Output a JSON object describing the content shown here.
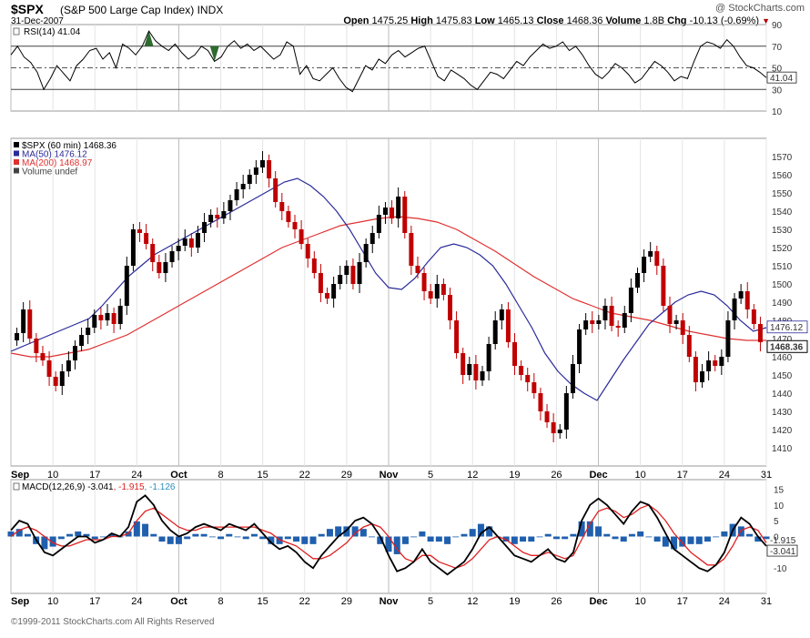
{
  "header": {
    "symbol": "$SPX",
    "symbol_name": "(S&P 500 Large Cap Index)",
    "exchange": "INDX",
    "date": "31-Dec-2007",
    "watermark": "@ StockCharts.com",
    "open_label": "Open",
    "open": "1475.25",
    "high_label": "High",
    "high": "1475.83",
    "low_label": "Low",
    "low": "1465.13",
    "close_label": "Close",
    "close": "1468.36",
    "volume_label": "Volume",
    "volume": "1.8B",
    "chg_label": "Chg",
    "chg": "-10.13 (-0.69%)",
    "chg_color": "#b00000"
  },
  "footer": {
    "copyright": "©1999-2011 StockCharts.com All Rights Reserved"
  },
  "x_axis": {
    "labels": [
      "Sep",
      "10",
      "17",
      "24",
      "Oct",
      "8",
      "15",
      "22",
      "29",
      "Nov",
      "5",
      "12",
      "19",
      "26",
      "Dec",
      "10",
      "17",
      "24",
      "31"
    ],
    "bold": [
      "Sep",
      "Oct",
      "Nov",
      "Dec"
    ]
  },
  "colors": {
    "price": "#000000",
    "ma50": "#2a2a9a",
    "ma200": "#e03030",
    "macd": "#000000",
    "signal": "#e02020",
    "histogram": "#1f5fae",
    "rsi_overbought_fill": "#2e6b2e"
  },
  "chart_data": [
    {
      "type": "line",
      "panel": "rsi",
      "legend": "RSI(14) 41.04",
      "last_value": "41.04",
      "ylim": [
        10,
        90
      ],
      "y_ticks": [
        90,
        70,
        50,
        30,
        10
      ],
      "levels": [
        70,
        50,
        30
      ],
      "values": [
        62,
        70,
        60,
        55,
        46,
        30,
        40,
        52,
        45,
        38,
        52,
        58,
        66,
        68,
        58,
        64,
        50,
        72,
        68,
        62,
        70,
        84,
        75,
        70,
        66,
        72,
        64,
        58,
        62,
        70,
        66,
        56,
        60,
        70,
        75,
        68,
        72,
        66,
        70,
        64,
        58,
        62,
        74,
        70,
        44,
        52,
        40,
        38,
        44,
        50,
        40,
        32,
        28,
        40,
        52,
        48,
        58,
        54,
        62,
        66,
        60,
        64,
        68,
        70,
        56,
        42,
        38,
        48,
        44,
        40,
        34,
        30,
        38,
        46,
        44,
        40,
        48,
        56,
        52,
        60,
        66,
        72,
        68,
        70,
        74,
        66,
        70,
        62,
        52,
        44,
        40,
        46,
        54,
        50,
        44,
        36,
        40,
        48,
        56,
        52,
        46,
        38,
        42,
        40,
        56,
        70,
        74,
        72,
        68,
        76,
        70,
        60,
        52,
        50,
        46,
        41
      ],
      "overbought_peaks": [
        21,
        31
      ]
    },
    {
      "type": "candlestick",
      "panel": "price",
      "legend": [
        "$SPX (60 min) 1468.36",
        "MA(50) 1476.12",
        "MA(200) 1468.97",
        "Volume undef"
      ],
      "ylim": [
        1400,
        1580
      ],
      "y_ticks": [
        1570,
        1560,
        1550,
        1540,
        1530,
        1520,
        1510,
        1500,
        1490,
        1480,
        1470,
        1460,
        1450,
        1440,
        1430,
        1420,
        1410
      ],
      "last_price": "1468.36",
      "ma50_last": "1476.12",
      "close": [
        1473,
        1486,
        1470,
        1462,
        1458,
        1449,
        1444,
        1452,
        1458,
        1466,
        1472,
        1476,
        1483,
        1480,
        1484,
        1478,
        1488,
        1510,
        1530,
        1528,
        1522,
        1512,
        1506,
        1512,
        1518,
        1521,
        1525,
        1520,
        1528,
        1534,
        1538,
        1536,
        1540,
        1546,
        1552,
        1555,
        1560,
        1564,
        1568,
        1558,
        1545,
        1540,
        1534,
        1530,
        1522,
        1514,
        1506,
        1495,
        1492,
        1500,
        1505,
        1510,
        1500,
        1512,
        1522,
        1528,
        1538,
        1542,
        1536,
        1548,
        1528,
        1510,
        1506,
        1496,
        1492,
        1500,
        1494,
        1480,
        1462,
        1450,
        1456,
        1447,
        1452,
        1467,
        1480,
        1486,
        1468,
        1455,
        1450,
        1446,
        1440,
        1430,
        1424,
        1418,
        1420,
        1440,
        1456,
        1475,
        1480,
        1478,
        1480,
        1488,
        1477,
        1476,
        1484,
        1498,
        1506,
        1515,
        1518,
        1510,
        1488,
        1478,
        1480,
        1472,
        1460,
        1446,
        1452,
        1458,
        1455,
        1460,
        1480,
        1492,
        1496,
        1486,
        1478,
        1468
      ],
      "ma50": [
        1463,
        1466,
        1469,
        1472,
        1475,
        1478,
        1481,
        1488,
        1496,
        1504,
        1510,
        1516,
        1520,
        1524,
        1528,
        1532,
        1536,
        1540,
        1544,
        1548,
        1552,
        1556,
        1558,
        1554,
        1548,
        1540,
        1530,
        1518,
        1506,
        1498,
        1497,
        1503,
        1512,
        1520,
        1522,
        1520,
        1516,
        1510,
        1500,
        1488,
        1476,
        1462,
        1452,
        1445,
        1440,
        1436,
        1447,
        1458,
        1468,
        1478,
        1484,
        1490,
        1494,
        1496,
        1494,
        1488,
        1480,
        1474,
        1476
      ],
      "ma200": [
        1462,
        1460,
        1460,
        1462,
        1464,
        1468,
        1472,
        1478,
        1484,
        1490,
        1496,
        1502,
        1508,
        1514,
        1520,
        1524,
        1528,
        1532,
        1534,
        1536,
        1537,
        1536,
        1534,
        1530,
        1524,
        1518,
        1511,
        1504,
        1498,
        1492,
        1488,
        1484,
        1482,
        1480,
        1477,
        1474,
        1472,
        1470,
        1469,
        1469
      ]
    },
    {
      "type": "line",
      "panel": "macd",
      "legend": "MACD(12,26,9) -3.041, -1.915, -1.126",
      "legend_parts": [
        "MACD(12,26,9) -3.041",
        ", -1.915",
        ", -1.126"
      ],
      "last_values": [
        "-1.915",
        "-3.041"
      ],
      "ylim": [
        -15,
        15
      ],
      "y_ticks": [
        15,
        10,
        5,
        0,
        -5,
        -10
      ],
      "macd": [
        2,
        5,
        4,
        -1,
        -5,
        -6,
        -4,
        -2,
        0,
        0,
        -2,
        -1,
        1,
        0,
        3,
        11,
        13,
        10,
        5,
        2,
        0,
        1,
        3,
        4,
        3,
        2,
        4,
        3,
        2,
        4,
        1,
        -2,
        -4,
        -3,
        -5,
        -8,
        -10,
        -6,
        -3,
        0,
        2,
        5,
        6,
        4,
        0,
        -6,
        -11,
        -10,
        -8,
        -4,
        -8,
        -10,
        -12,
        -10,
        -8,
        -4,
        1,
        3,
        0,
        -3,
        -6,
        -7,
        -8,
        -6,
        -4,
        -7,
        -8,
        -5,
        5,
        10,
        12,
        10,
        7,
        4,
        8,
        11,
        10,
        6,
        1,
        -4,
        -6,
        -8,
        -10,
        -11,
        -9,
        -5,
        2,
        6,
        4,
        0,
        -3
      ],
      "signal": [
        0,
        2,
        3,
        2,
        0,
        -2,
        -3,
        -3,
        -2,
        -1,
        -1,
        -1,
        0,
        0,
        1,
        5,
        8,
        9,
        7,
        5,
        3,
        2,
        2,
        3,
        3,
        3,
        3,
        3,
        3,
        3,
        2,
        1,
        -1,
        -2,
        -3,
        -5,
        -7,
        -7,
        -6,
        -4,
        -2,
        1,
        3,
        4,
        3,
        0,
        -4,
        -7,
        -8,
        -6,
        -6,
        -8,
        -9,
        -10,
        -9,
        -7,
        -4,
        -1,
        0,
        -1,
        -3,
        -5,
        -6,
        -6,
        -5,
        -6,
        -7,
        -6,
        -1,
        4,
        8,
        9,
        8,
        6,
        7,
        9,
        10,
        8,
        5,
        1,
        -2,
        -5,
        -7,
        -9,
        -9,
        -7,
        -3,
        2,
        3,
        2,
        -2
      ],
      "histogram_note": "blue bars = MACD minus signal"
    }
  ]
}
